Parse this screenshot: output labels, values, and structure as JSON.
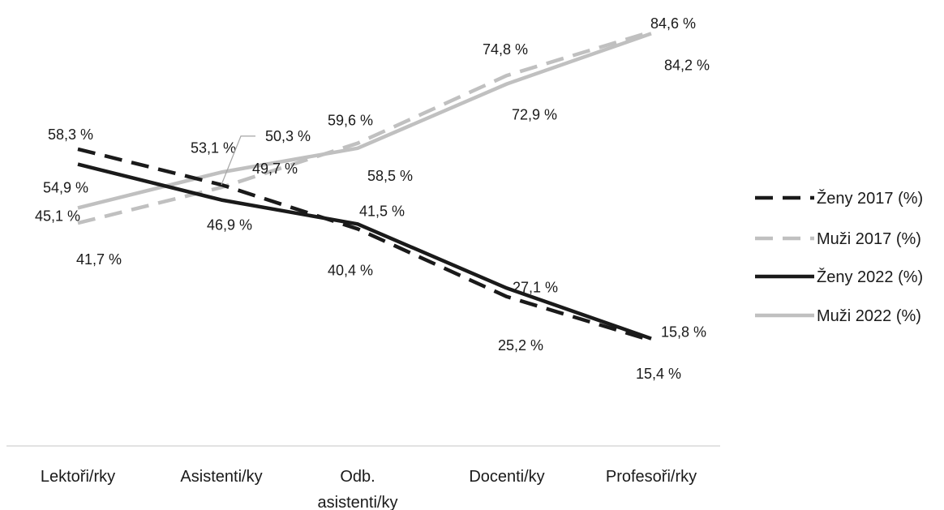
{
  "chart_data": {
    "type": "line",
    "categories": [
      "Lektoři/rky",
      "Asistenti/ky",
      "Odb. asistenti/ky",
      "Docenti/ky",
      "Profesoři/rky"
    ],
    "ylim": [
      0,
      100
    ],
    "grid": false,
    "legend_position": "right",
    "series": [
      {
        "name": "Ženy 2017 (%)",
        "values": [
          58.3,
          50.3,
          40.4,
          25.2,
          15.4
        ],
        "labels": [
          "58,3 %",
          "",
          "40,4 %",
          "25,2 %",
          "15,4 %"
        ],
        "color": "#1a1a1a",
        "dash": true
      },
      {
        "name": "Muži 2017 (%)",
        "values": [
          41.7,
          49.7,
          59.6,
          74.8,
          84.6
        ],
        "labels": [
          "41,7 %",
          "49,7 %",
          "59,6 %",
          "74,8 %",
          "84,6 %"
        ],
        "color": "#c0c0c0",
        "dash": true
      },
      {
        "name": "Ženy 2022 (%)",
        "values": [
          54.9,
          46.9,
          41.5,
          27.1,
          15.8
        ],
        "labels": [
          "54,9 %",
          "46,9 %",
          "41,5 %",
          "27,1 %",
          "15,8 %"
        ],
        "color": "#1a1a1a",
        "dash": false
      },
      {
        "name": "Muži 2022 (%)",
        "values": [
          45.1,
          53.1,
          58.5,
          72.9,
          84.2
        ],
        "labels": [
          "45,1 %",
          "53,1 %",
          "58,5 %",
          "72,9 %",
          "84,2 %"
        ],
        "color": "#c0c0c0",
        "dash": false
      }
    ],
    "annotations": [
      {
        "text": "50,3 %",
        "series": "Ženy 2017 (%)",
        "category": "Asistenti/ky",
        "callout": true
      }
    ]
  }
}
